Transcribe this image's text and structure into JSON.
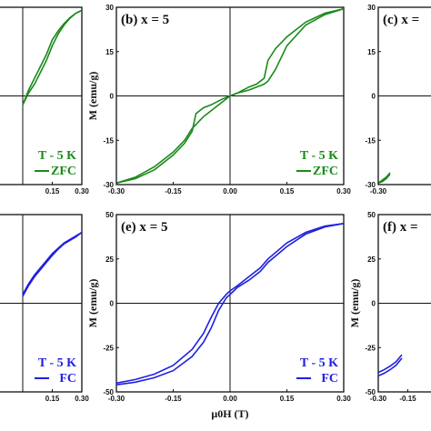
{
  "chart_data": [
    {
      "id": "a",
      "type": "line",
      "panel_label": "",
      "xlabel": "",
      "ylabel": "",
      "xlim": [
        -0.3,
        0.3
      ],
      "ylim": [
        -30,
        30
      ],
      "xticks": [
        "0.15",
        "0.30"
      ],
      "yticks": [],
      "legend": {
        "lines": [
          "T - 5 K",
          "ZFC"
        ],
        "color": "#1a8a1a"
      },
      "color": "#1a8a1a",
      "series": [
        {
          "x": [
            0.0,
            0.03,
            0.06,
            0.09,
            0.12,
            0.15,
            0.18,
            0.21,
            0.24,
            0.27,
            0.3
          ],
          "y": [
            -3,
            2,
            6,
            10,
            14,
            19,
            22,
            24.5,
            26.5,
            28,
            29
          ]
        },
        {
          "x": [
            0.0,
            0.03,
            0.06,
            0.09,
            0.12,
            0.15,
            0.18,
            0.21,
            0.24,
            0.27,
            0.3
          ],
          "y": [
            -3,
            1,
            4,
            8,
            12,
            17,
            21,
            24,
            26.3,
            28,
            29
          ]
        }
      ]
    },
    {
      "id": "b",
      "type": "line",
      "panel_label": "(b) x = 5",
      "xlabel": "",
      "ylabel": "M (emu/g)",
      "xlim": [
        -0.3,
        0.3
      ],
      "ylim": [
        -30,
        30
      ],
      "xticks": [
        "-0.30",
        "-0.15",
        "0.00",
        "0.15",
        "0.30"
      ],
      "yticks": [
        "30",
        "15",
        "0",
        "-15",
        "-30"
      ],
      "legend": {
        "lines": [
          "T - 5 K",
          "ZFC"
        ],
        "color": "#1a8a1a"
      },
      "color": "#1a8a1a",
      "series": [
        {
          "x": [
            -0.3,
            -0.25,
            -0.2,
            -0.15,
            -0.12,
            -0.1,
            -0.09,
            -0.07,
            -0.05,
            -0.02,
            0.0,
            0.02,
            0.05,
            0.07,
            0.09,
            0.1,
            0.12,
            0.15,
            0.2,
            0.25,
            0.3
          ],
          "y": [
            -29.5,
            -28,
            -25,
            -20,
            -16,
            -12,
            -6,
            -4,
            -3,
            -1,
            0,
            1,
            3,
            4,
            6,
            12,
            16,
            20,
            25,
            28,
            29.5
          ]
        },
        {
          "x": [
            -0.3,
            -0.25,
            -0.2,
            -0.15,
            -0.12,
            -0.1,
            -0.07,
            -0.05,
            -0.02,
            0.0,
            0.02,
            0.05,
            0.07,
            0.09,
            0.1,
            0.12,
            0.15,
            0.2,
            0.25,
            0.3
          ],
          "y": [
            -29.5,
            -27.5,
            -24,
            -19,
            -15,
            -11,
            -7,
            -5,
            -2,
            0,
            1,
            2,
            3,
            4,
            5,
            9,
            17,
            24,
            27.5,
            29.5
          ]
        }
      ]
    },
    {
      "id": "c",
      "type": "line",
      "panel_label": "(c) x =",
      "xlabel": "",
      "ylabel": "",
      "xlim": [
        -0.3,
        0.3
      ],
      "ylim": [
        -30,
        30
      ],
      "xticks": [
        "-0.30"
      ],
      "yticks": [
        "30",
        "15",
        "0",
        "-15",
        "-30"
      ],
      "legend": {
        "lines": [],
        "color": "#1a8a1a"
      },
      "color": "#1a8a1a",
      "series": [
        {
          "x": [
            -0.3,
            -0.28,
            -0.26,
            -0.24
          ],
          "y": [
            -29.5,
            -28.5,
            -27.5,
            -26
          ]
        },
        {
          "x": [
            -0.3,
            -0.28,
            -0.26,
            -0.24
          ],
          "y": [
            -29.5,
            -29,
            -28,
            -26.5
          ]
        }
      ]
    },
    {
      "id": "d",
      "type": "line",
      "panel_label": "",
      "xlabel": "",
      "ylabel": "",
      "xlim": [
        -0.3,
        0.3
      ],
      "ylim": [
        -50,
        50
      ],
      "xticks": [
        "0.15",
        "0.30"
      ],
      "yticks": [],
      "legend": {
        "lines": [
          "T - 5 K",
          "FC"
        ],
        "color": "#1f1fe0"
      },
      "color": "#1f1fe0",
      "series": [
        {
          "x": [
            0.0,
            0.03,
            0.06,
            0.09,
            0.12,
            0.15,
            0.18,
            0.21,
            0.24,
            0.27,
            0.3
          ],
          "y": [
            5,
            11,
            16,
            20,
            24,
            28,
            31,
            34,
            36,
            38,
            40
          ]
        },
        {
          "x": [
            0.0,
            0.03,
            0.06,
            0.09,
            0.12,
            0.15,
            0.18,
            0.21,
            0.24,
            0.27,
            0.3
          ],
          "y": [
            4,
            10,
            15,
            19,
            23,
            27,
            30.5,
            33.5,
            35.5,
            37.5,
            40
          ]
        }
      ]
    },
    {
      "id": "e",
      "type": "line",
      "panel_label": "(e) x = 5",
      "xlabel": "μ0H (T)",
      "ylabel": "M (emu/g)",
      "xlim": [
        -0.3,
        0.3
      ],
      "ylim": [
        -50,
        50
      ],
      "xticks": [
        "-0.30",
        "-0.15",
        "0.00",
        "0.15",
        "0.30"
      ],
      "yticks": [
        "50",
        "25",
        "0",
        "-25",
        "-50"
      ],
      "legend": {
        "lines": [
          "T - 5 K",
          "FC"
        ],
        "color": "#1f1fe0"
      },
      "color": "#1f1fe0",
      "series": [
        {
          "x": [
            -0.3,
            -0.25,
            -0.2,
            -0.15,
            -0.1,
            -0.07,
            -0.05,
            -0.03,
            -0.01,
            0.0,
            0.02,
            0.05,
            0.08,
            0.1,
            0.15,
            0.2,
            0.25,
            0.3
          ],
          "y": [
            -46,
            -44.5,
            -42,
            -38,
            -30,
            -22,
            -14,
            -4,
            3,
            5,
            9,
            13,
            18,
            23,
            32,
            39,
            43,
            45
          ]
        },
        {
          "x": [
            -0.3,
            -0.25,
            -0.2,
            -0.15,
            -0.1,
            -0.07,
            -0.05,
            -0.03,
            -0.01,
            0.0,
            0.02,
            0.05,
            0.08,
            0.1,
            0.15,
            0.2,
            0.25,
            0.3
          ],
          "y": [
            -45,
            -43,
            -40,
            -35,
            -26,
            -17,
            -8,
            0,
            5,
            7,
            10,
            15,
            20,
            25,
            34,
            40,
            43.5,
            45
          ]
        }
      ]
    },
    {
      "id": "f",
      "type": "line",
      "panel_label": "(f) x =",
      "xlabel": "",
      "ylabel": "M (emu/g)",
      "xlim": [
        -0.3,
        0.3
      ],
      "ylim": [
        -50,
        50
      ],
      "xticks": [
        "-0.30",
        "-0.15"
      ],
      "yticks": [
        "50",
        "25",
        "0",
        "-25",
        "-50"
      ],
      "legend": {
        "lines": [],
        "color": "#1f1fe0"
      },
      "color": "#1f1fe0",
      "series": [
        {
          "x": [
            -0.3,
            -0.27,
            -0.24,
            -0.21,
            -0.18
          ],
          "y": [
            -41,
            -39.5,
            -37.5,
            -35,
            -31
          ]
        },
        {
          "x": [
            -0.3,
            -0.27,
            -0.24,
            -0.21,
            -0.18
          ],
          "y": [
            -39,
            -37.5,
            -35.5,
            -33,
            -29
          ]
        }
      ]
    }
  ]
}
